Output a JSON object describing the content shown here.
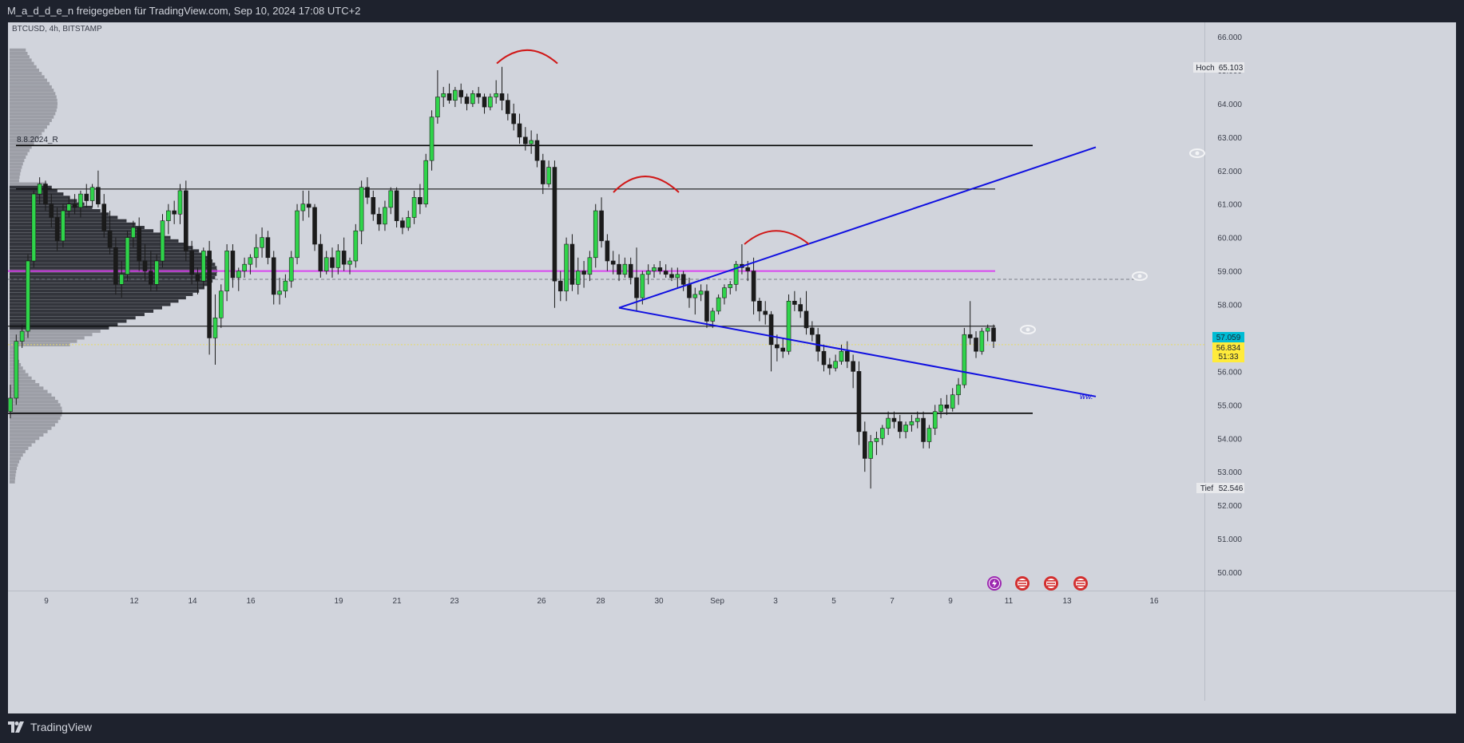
{
  "header": {
    "shared_by": "M_a_d_d_e_n freigegeben für TradingView.com, Sep 10, 2024 17:08 UTC+2"
  },
  "brand": {
    "name": "TradingView"
  },
  "symbol": {
    "legend": "BTCUSD, 4h, BITSTAMP"
  },
  "colors": {
    "bull": "#2fd44a",
    "bear": "#1b1b1b",
    "trend": "#1010e0",
    "pivot": "#d01818",
    "magenta": "#d946ef",
    "bg": "#d1d4dc",
    "frame": "#1e222d",
    "price_tag": "#00bcd4",
    "countdown_tag": "#ffeb3b"
  },
  "chart_data": {
    "type": "candlestick",
    "symbol": "BTCUSD",
    "interval": "4h",
    "exchange": "BITSTAMP",
    "ylim": [
      49600,
      66600
    ],
    "y_ticks": [
      "66.000",
      "65.000",
      "64.000",
      "63.000",
      "62.000",
      "61.000",
      "60.000",
      "59.000",
      "58.000",
      "57.000",
      "56.000",
      "55.000",
      "54.000",
      "53.000",
      "52.000",
      "51.000",
      "50.000"
    ],
    "x_ticks": [
      "9",
      "12",
      "14",
      "16",
      "19",
      "21",
      "23",
      "26",
      "28",
      "30",
      "Sep",
      "3",
      "5",
      "7",
      "9",
      "11",
      "13",
      "16"
    ],
    "price_labels": {
      "high_label": "Hoch",
      "high_value": "65.103",
      "low_label": "Tief",
      "low_value": "52.546",
      "last_price": "57.059",
      "current_price": "56.834",
      "countdown": "51:33"
    },
    "annotations": {
      "level_label": "8.8.2024_R",
      "pattern_label": "ww."
    },
    "horizontal_levels": [
      62.75,
      61.45,
      59.0,
      58.75,
      57.35,
      56.8,
      54.75
    ],
    "candles_ohlc_thousands": [
      [
        54.8,
        55.6,
        54.6,
        55.2
      ],
      [
        55.2,
        57.1,
        55.0,
        56.9
      ],
      [
        56.9,
        57.4,
        56.7,
        57.2
      ],
      [
        57.2,
        59.5,
        57.0,
        59.3
      ],
      [
        59.3,
        61.4,
        59.1,
        61.3
      ],
      [
        61.3,
        61.8,
        61.0,
        61.6
      ],
      [
        61.6,
        61.7,
        60.8,
        61.0
      ],
      [
        61.0,
        61.3,
        60.3,
        60.6
      ],
      [
        60.6,
        60.9,
        59.6,
        59.9
      ],
      [
        59.9,
        61.0,
        59.7,
        60.8
      ],
      [
        60.8,
        61.2,
        60.6,
        61.0
      ],
      [
        61.0,
        61.3,
        60.7,
        60.9
      ],
      [
        60.9,
        61.4,
        60.6,
        61.3
      ],
      [
        61.3,
        61.6,
        60.9,
        61.1
      ],
      [
        61.1,
        61.6,
        60.9,
        61.5
      ],
      [
        61.5,
        62.0,
        60.9,
        61.0
      ],
      [
        61.0,
        61.3,
        60.0,
        60.2
      ],
      [
        60.2,
        60.8,
        59.5,
        59.7
      ],
      [
        59.7,
        60.0,
        58.3,
        58.6
      ],
      [
        58.6,
        59.3,
        58.2,
        58.9
      ],
      [
        58.9,
        60.2,
        58.7,
        60.0
      ],
      [
        60.0,
        60.5,
        59.7,
        60.3
      ],
      [
        60.3,
        60.6,
        59.0,
        59.3
      ],
      [
        59.3,
        59.8,
        58.7,
        59.0
      ],
      [
        59.0,
        59.6,
        58.4,
        58.6
      ],
      [
        58.6,
        59.5,
        58.4,
        59.3
      ],
      [
        59.3,
        60.7,
        59.1,
        60.5
      ],
      [
        60.5,
        61.0,
        60.1,
        60.8
      ],
      [
        60.8,
        61.1,
        60.4,
        60.7
      ],
      [
        60.7,
        61.6,
        60.4,
        61.4
      ],
      [
        61.4,
        61.7,
        59.3,
        59.6
      ],
      [
        59.6,
        59.9,
        58.6,
        58.9
      ],
      [
        58.9,
        59.1,
        58.3,
        58.7
      ],
      [
        58.7,
        59.7,
        58.5,
        59.6
      ],
      [
        59.6,
        59.9,
        56.5,
        57.0
      ],
      [
        57.0,
        58.3,
        56.2,
        57.6
      ],
      [
        57.6,
        58.6,
        57.3,
        58.4
      ],
      [
        58.4,
        59.8,
        58.1,
        59.6
      ],
      [
        59.6,
        59.8,
        58.5,
        58.8
      ],
      [
        58.8,
        59.1,
        58.4,
        59.0
      ],
      [
        59.0,
        59.4,
        58.8,
        59.2
      ],
      [
        59.2,
        59.5,
        58.9,
        59.4
      ],
      [
        59.4,
        60.1,
        59.1,
        59.7
      ],
      [
        59.7,
        60.3,
        59.4,
        60.0
      ],
      [
        60.0,
        60.2,
        59.2,
        59.4
      ],
      [
        59.4,
        59.6,
        58.0,
        58.3
      ],
      [
        58.3,
        58.8,
        58.0,
        58.4
      ],
      [
        58.4,
        58.9,
        58.2,
        58.7
      ],
      [
        58.7,
        59.6,
        58.5,
        59.4
      ],
      [
        59.4,
        61.0,
        59.2,
        60.8
      ],
      [
        60.8,
        61.4,
        60.5,
        61.0
      ],
      [
        61.0,
        61.4,
        60.6,
        60.9
      ],
      [
        60.9,
        61.0,
        59.6,
        59.8
      ],
      [
        59.8,
        60.1,
        58.8,
        59.0
      ],
      [
        59.0,
        59.6,
        58.9,
        59.4
      ],
      [
        59.4,
        59.7,
        58.8,
        59.1
      ],
      [
        59.1,
        59.8,
        58.9,
        59.6
      ],
      [
        59.6,
        60.0,
        59.0,
        59.2
      ],
      [
        59.2,
        59.4,
        58.9,
        59.3
      ],
      [
        59.3,
        60.4,
        59.1,
        60.2
      ],
      [
        60.2,
        61.7,
        59.8,
        61.5
      ],
      [
        61.5,
        61.8,
        61.0,
        61.2
      ],
      [
        61.2,
        61.4,
        60.5,
        60.7
      ],
      [
        60.7,
        60.9,
        60.2,
        60.4
      ],
      [
        60.4,
        61.1,
        60.2,
        60.9
      ],
      [
        60.9,
        61.5,
        60.7,
        61.4
      ],
      [
        61.4,
        61.5,
        60.3,
        60.5
      ],
      [
        60.5,
        60.6,
        60.1,
        60.3
      ],
      [
        60.3,
        60.8,
        60.2,
        60.6
      ],
      [
        60.6,
        61.4,
        60.4,
        61.2
      ],
      [
        61.2,
        61.6,
        60.7,
        61.0
      ],
      [
        61.0,
        62.5,
        60.9,
        62.3
      ],
      [
        62.3,
        63.8,
        62.0,
        63.6
      ],
      [
        63.6,
        65.0,
        63.4,
        64.2
      ],
      [
        64.2,
        64.5,
        63.9,
        64.3
      ],
      [
        64.3,
        64.6,
        64.0,
        64.1
      ],
      [
        64.1,
        64.5,
        63.9,
        64.4
      ],
      [
        64.4,
        64.6,
        64.0,
        64.2
      ],
      [
        64.2,
        64.3,
        63.8,
        64.0
      ],
      [
        64.0,
        64.4,
        63.9,
        64.3
      ],
      [
        64.3,
        64.5,
        64.0,
        64.2
      ],
      [
        64.2,
        64.3,
        63.7,
        63.9
      ],
      [
        63.9,
        64.3,
        63.8,
        64.2
      ],
      [
        64.2,
        64.7,
        64.0,
        64.3
      ],
      [
        64.3,
        65.1,
        63.8,
        64.1
      ],
      [
        64.1,
        64.3,
        63.5,
        63.7
      ],
      [
        63.7,
        64.0,
        63.2,
        63.4
      ],
      [
        63.4,
        63.7,
        62.8,
        63.0
      ],
      [
        63.0,
        63.3,
        62.6,
        62.8
      ],
      [
        62.8,
        63.2,
        62.5,
        62.9
      ],
      [
        62.9,
        63.1,
        62.1,
        62.3
      ],
      [
        62.3,
        62.5,
        61.3,
        61.6
      ],
      [
        61.6,
        62.3,
        61.5,
        62.1
      ],
      [
        62.1,
        62.3,
        57.9,
        58.7
      ],
      [
        58.7,
        59.0,
        58.1,
        58.4
      ],
      [
        58.4,
        60.0,
        58.1,
        59.8
      ],
      [
        59.8,
        60.1,
        58.4,
        58.6
      ],
      [
        58.6,
        59.4,
        58.3,
        59.0
      ],
      [
        59.0,
        59.3,
        58.5,
        58.9
      ],
      [
        58.9,
        59.6,
        58.7,
        59.4
      ],
      [
        59.4,
        61.0,
        59.1,
        60.8
      ],
      [
        60.8,
        61.2,
        59.7,
        59.9
      ],
      [
        59.9,
        60.1,
        59.0,
        59.3
      ],
      [
        59.3,
        59.6,
        58.9,
        59.2
      ],
      [
        59.2,
        59.5,
        58.7,
        58.9
      ],
      [
        58.9,
        59.4,
        58.8,
        59.2
      ],
      [
        59.2,
        59.4,
        58.6,
        58.8
      ],
      [
        58.8,
        59.7,
        57.8,
        58.2
      ],
      [
        58.2,
        59.0,
        58.0,
        58.9
      ],
      [
        58.9,
        59.2,
        58.6,
        59.0
      ],
      [
        59.0,
        59.2,
        58.8,
        59.1
      ],
      [
        59.1,
        59.3,
        58.9,
        59.0
      ],
      [
        59.0,
        59.2,
        58.8,
        58.9
      ],
      [
        58.9,
        59.1,
        58.7,
        58.8
      ],
      [
        58.8,
        59.1,
        58.5,
        58.9
      ],
      [
        58.9,
        59.0,
        58.4,
        58.6
      ],
      [
        58.6,
        58.8,
        57.9,
        58.2
      ],
      [
        58.2,
        58.5,
        57.7,
        58.3
      ],
      [
        58.3,
        58.6,
        58.1,
        58.4
      ],
      [
        58.4,
        58.6,
        57.3,
        57.5
      ],
      [
        57.5,
        57.9,
        57.3,
        57.8
      ],
      [
        57.8,
        58.3,
        57.7,
        58.2
      ],
      [
        58.2,
        58.6,
        58.0,
        58.5
      ],
      [
        58.5,
        58.7,
        58.3,
        58.6
      ],
      [
        58.6,
        59.3,
        58.4,
        59.2
      ],
      [
        59.2,
        59.8,
        58.9,
        59.1
      ],
      [
        59.1,
        59.3,
        58.7,
        59.0
      ],
      [
        59.0,
        59.4,
        57.7,
        58.1
      ],
      [
        58.1,
        58.2,
        57.5,
        57.8
      ],
      [
        57.8,
        58.1,
        57.4,
        57.7
      ],
      [
        57.7,
        57.8,
        56.0,
        56.8
      ],
      [
        56.8,
        57.1,
        56.3,
        56.7
      ],
      [
        56.7,
        57.0,
        56.4,
        56.6
      ],
      [
        56.6,
        58.3,
        56.5,
        58.1
      ],
      [
        58.1,
        58.4,
        57.8,
        58.0
      ],
      [
        58.0,
        58.2,
        57.6,
        57.8
      ],
      [
        57.8,
        58.4,
        57.1,
        57.3
      ],
      [
        57.3,
        57.5,
        56.9,
        57.1
      ],
      [
        57.1,
        57.3,
        56.3,
        56.6
      ],
      [
        56.6,
        56.8,
        56.0,
        56.2
      ],
      [
        56.2,
        56.4,
        55.9,
        56.1
      ],
      [
        56.1,
        56.5,
        56.0,
        56.3
      ],
      [
        56.3,
        56.8,
        56.2,
        56.6
      ],
      [
        56.6,
        56.9,
        56.1,
        56.3
      ],
      [
        56.3,
        56.5,
        55.5,
        56.0
      ],
      [
        56.0,
        56.3,
        53.8,
        54.2
      ],
      [
        54.2,
        54.5,
        53.0,
        53.4
      ],
      [
        53.4,
        54.1,
        52.5,
        53.9
      ],
      [
        53.9,
        54.2,
        53.5,
        54.0
      ],
      [
        54.0,
        54.4,
        53.8,
        54.3
      ],
      [
        54.3,
        54.8,
        54.1,
        54.6
      ],
      [
        54.6,
        54.8,
        54.3,
        54.5
      ],
      [
        54.5,
        54.7,
        54.0,
        54.2
      ],
      [
        54.2,
        54.5,
        54.0,
        54.4
      ],
      [
        54.4,
        54.7,
        54.2,
        54.5
      ],
      [
        54.5,
        54.8,
        54.3,
        54.6
      ],
      [
        54.6,
        54.8,
        53.7,
        53.9
      ],
      [
        53.9,
        54.4,
        53.7,
        54.3
      ],
      [
        54.3,
        55.0,
        54.1,
        54.8
      ],
      [
        54.8,
        55.2,
        54.6,
        55.0
      ],
      [
        55.0,
        55.3,
        54.7,
        54.9
      ],
      [
        54.9,
        55.5,
        54.8,
        55.3
      ],
      [
        55.3,
        55.8,
        55.0,
        55.6
      ],
      [
        55.6,
        57.3,
        55.5,
        57.1
      ],
      [
        57.1,
        58.1,
        56.8,
        57.0
      ],
      [
        57.0,
        57.2,
        56.4,
        56.6
      ],
      [
        56.6,
        57.3,
        56.5,
        57.2
      ],
      [
        57.2,
        57.4,
        56.9,
        57.3
      ],
      [
        57.3,
        57.4,
        56.7,
        56.9
      ]
    ],
    "volume_profile_note": "horizontal volume histogram on left, point of control near 59.0",
    "grid": false
  },
  "toolbar_icons": [
    "lightning-icon",
    "us-flag-icon",
    "us-flag-icon",
    "us-flag-icon"
  ]
}
